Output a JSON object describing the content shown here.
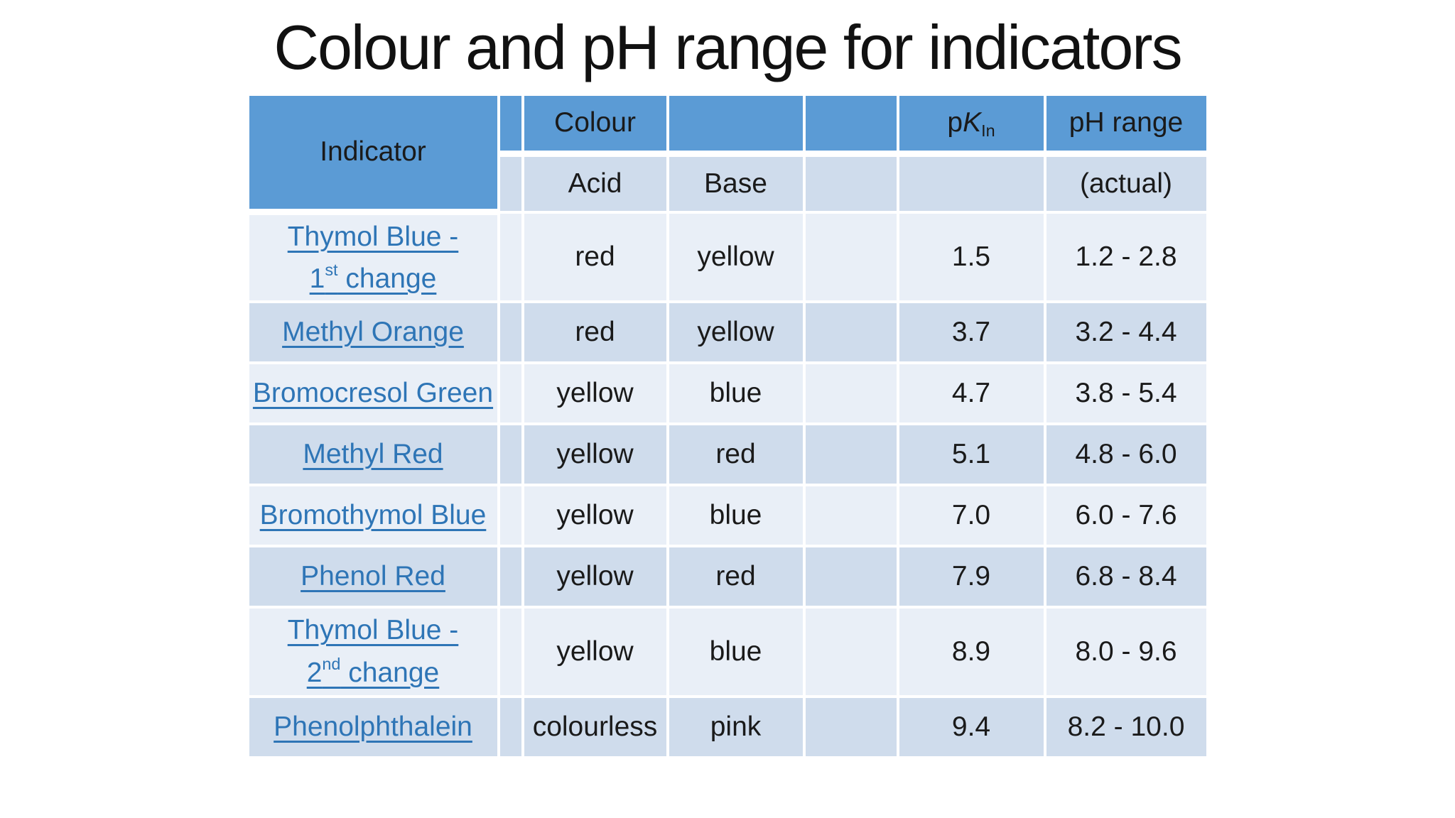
{
  "title": "Colour and pH range for indicators",
  "colors": {
    "header_blue": "#5b9bd5",
    "band_dark": "#cfdcec",
    "band_light": "#e9eff7",
    "hyperlink_blue": "#2e75b6",
    "text_dark": "#1a1a1a",
    "slide_background": "#ffffff"
  },
  "table": {
    "header": {
      "indicator": "Indicator",
      "colour": "Colour",
      "acid": "Acid",
      "base": "Base",
      "pk": {
        "p": "p",
        "k": "K",
        "sub": "In"
      },
      "ph_range": "pH range",
      "actual": "(actual)"
    },
    "rows": [
      {
        "indicator": [
          [
            {
              "t": "Thymol Blue -"
            }
          ],
          [
            {
              "t": "1"
            },
            {
              "t": "st",
              "sup": true
            },
            {
              "t": " change"
            }
          ]
        ],
        "acid": "red",
        "base": "yellow",
        "pk": "1.5",
        "ph": "1.2 - 2.8"
      },
      {
        "indicator": [
          [
            {
              "t": "Methyl Orange"
            }
          ]
        ],
        "acid": "red",
        "base": "yellow",
        "pk": "3.7",
        "ph": "3.2 - 4.4"
      },
      {
        "indicator": [
          [
            {
              "t": "Bromocresol Green"
            }
          ]
        ],
        "acid": "yellow",
        "base": "blue",
        "pk": "4.7",
        "ph": "3.8 - 5.4"
      },
      {
        "indicator": [
          [
            {
              "t": "Methyl Red"
            }
          ]
        ],
        "acid": "yellow",
        "base": "red",
        "pk": "5.1",
        "ph": "4.8 - 6.0"
      },
      {
        "indicator": [
          [
            {
              "t": "Bromothymol Blue"
            }
          ]
        ],
        "acid": "yellow",
        "base": "blue",
        "pk": "7.0",
        "ph": "6.0 - 7.6"
      },
      {
        "indicator": [
          [
            {
              "t": "Phenol Red"
            }
          ]
        ],
        "acid": "yellow",
        "base": "red",
        "pk": "7.9",
        "ph": "6.8 - 8.4"
      },
      {
        "indicator": [
          [
            {
              "t": "Thymol Blue -"
            }
          ],
          [
            {
              "t": "2"
            },
            {
              "t": "nd",
              "sup": true
            },
            {
              "t": " change"
            }
          ]
        ],
        "acid": "yellow",
        "base": "blue",
        "pk": "8.9",
        "ph": "8.0 - 9.6"
      },
      {
        "indicator": [
          [
            {
              "t": "Phenolphthalein"
            }
          ]
        ],
        "acid": "colourless",
        "base": "pink",
        "pk": "9.4",
        "ph": "8.2 - 10.0"
      }
    ]
  }
}
